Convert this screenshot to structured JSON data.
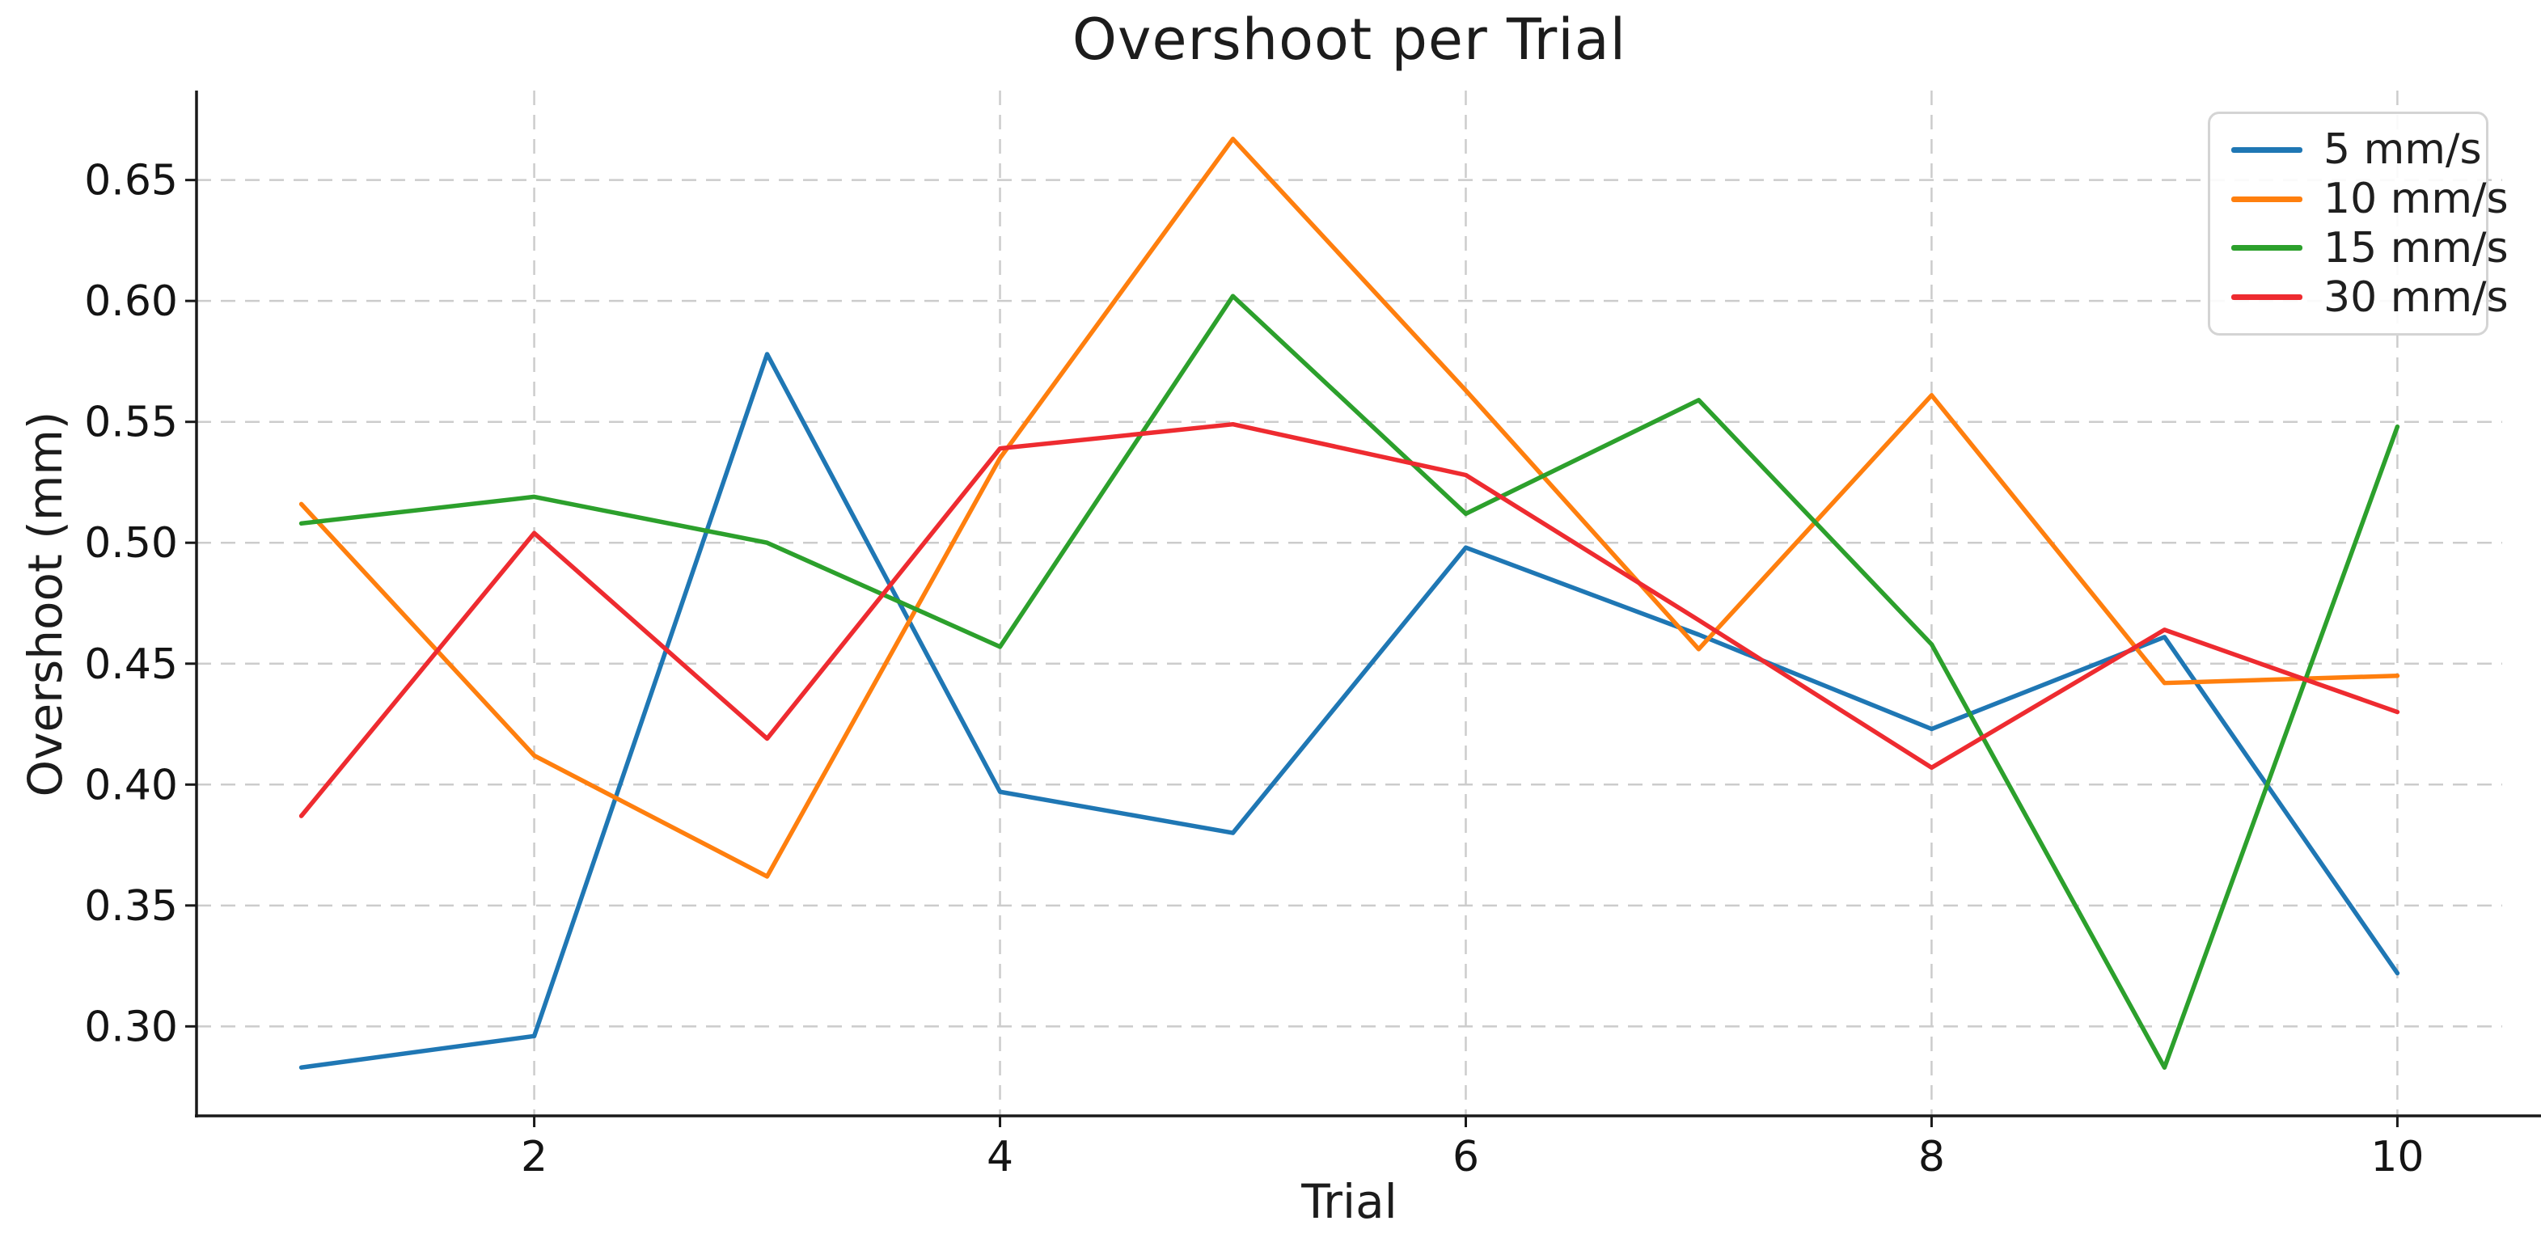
{
  "figure": {
    "title": "Overshoot per Trial",
    "background_color": "#ffffff",
    "axis_color": "#1a1a1a",
    "grid_color": "#cccccc",
    "tick_text_color": "#141414"
  },
  "chart_data": {
    "type": "line",
    "title": "Overshoot per Trial",
    "xlabel": "Trial",
    "ylabel": "Overshoot (mm)",
    "x": [
      1,
      2,
      3,
      4,
      5,
      6,
      7,
      8,
      9,
      10
    ],
    "series": [
      {
        "name": "5 mm/s",
        "color": "#1f77b4",
        "values": [
          0.283,
          0.296,
          0.578,
          0.397,
          0.38,
          0.498,
          0.462,
          0.423,
          0.461,
          0.322
        ]
      },
      {
        "name": "10 mm/s",
        "color": "#ff7f0e",
        "values": [
          0.516,
          0.412,
          0.362,
          0.535,
          0.667,
          0.563,
          0.456,
          0.561,
          0.442,
          0.445
        ]
      },
      {
        "name": "15 mm/s",
        "color": "#2ca02c",
        "values": [
          0.508,
          0.519,
          0.5,
          0.457,
          0.602,
          0.512,
          0.559,
          0.458,
          0.283,
          0.548
        ]
      },
      {
        "name": "30 mm/s",
        "color": "#ee2b30",
        "values": [
          0.387,
          0.504,
          0.419,
          0.539,
          0.549,
          0.528,
          0.468,
          0.407,
          0.464,
          0.43
        ]
      }
    ],
    "xlim": [
      0.55,
      10.45
    ],
    "ylim": [
      0.263,
      0.687
    ],
    "xticks": [
      2,
      4,
      6,
      8,
      10
    ],
    "yticks": [
      0.3,
      0.35,
      0.4,
      0.45,
      0.5,
      0.55,
      0.6,
      0.65
    ],
    "grid": true,
    "grid_style": "dashed",
    "legend_position": "upper right"
  }
}
